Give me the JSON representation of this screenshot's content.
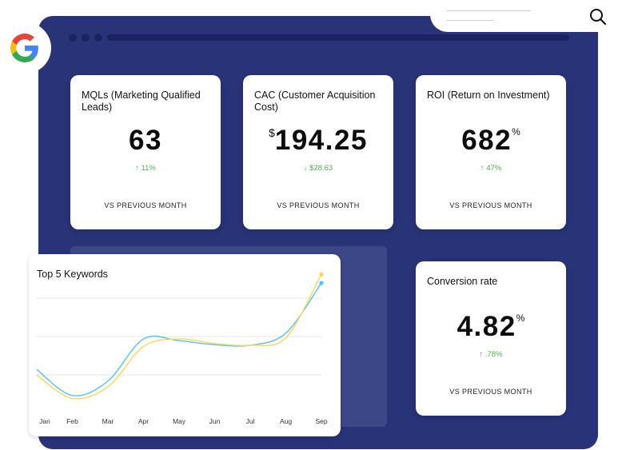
{
  "browser": {
    "search_icon": "search-icon",
    "logo": "google-logo"
  },
  "kpis": [
    {
      "title": "MQLs (Marketing Qualified Leads)",
      "prefix": "",
      "value": "63",
      "suffix": "",
      "change_icon": "arrow-up-icon",
      "change": "11%",
      "comparison": "VS PREVIOUS MONTH"
    },
    {
      "title": "CAC (Customer Acquisition Cost)",
      "prefix": "$",
      "value": "194.25",
      "suffix": "",
      "change_icon": "arrow-down-icon",
      "change": "$28.63",
      "comparison": "VS PREVIOUS MONTH"
    },
    {
      "title": "ROI (Return on Investment)",
      "prefix": "",
      "value": "682",
      "suffix": "%",
      "change_icon": "arrow-up-icon",
      "change": "47%",
      "comparison": "VS PREVIOUS MONTH"
    },
    {
      "title": "Conversion rate",
      "prefix": "",
      "value": "4.82",
      "suffix": "%",
      "change_icon": "arrow-up-icon",
      "change": ".78%",
      "comparison": "VS PREVIOUS MONTH"
    }
  ],
  "colors": {
    "frame": "#283378",
    "positive": "#4caf50",
    "series_blue": "#4fc3f7",
    "series_yellow": "#ffd54f"
  },
  "chart_data": {
    "type": "line",
    "title": "Top 5 Keywords",
    "categories": [
      "Jan",
      "Feb",
      "Mar",
      "Apr",
      "May",
      "Jun",
      "Jul",
      "Aug",
      "Sep"
    ],
    "series": [
      {
        "values": [
          55,
          10,
          35,
          108,
          105,
          98,
          97,
          118,
          205
        ]
      },
      {
        "values": [
          45,
          5,
          25,
          95,
          108,
          100,
          97,
          110,
          220
        ]
      }
    ],
    "ylim": [
      0,
      230
    ],
    "grid": true
  }
}
